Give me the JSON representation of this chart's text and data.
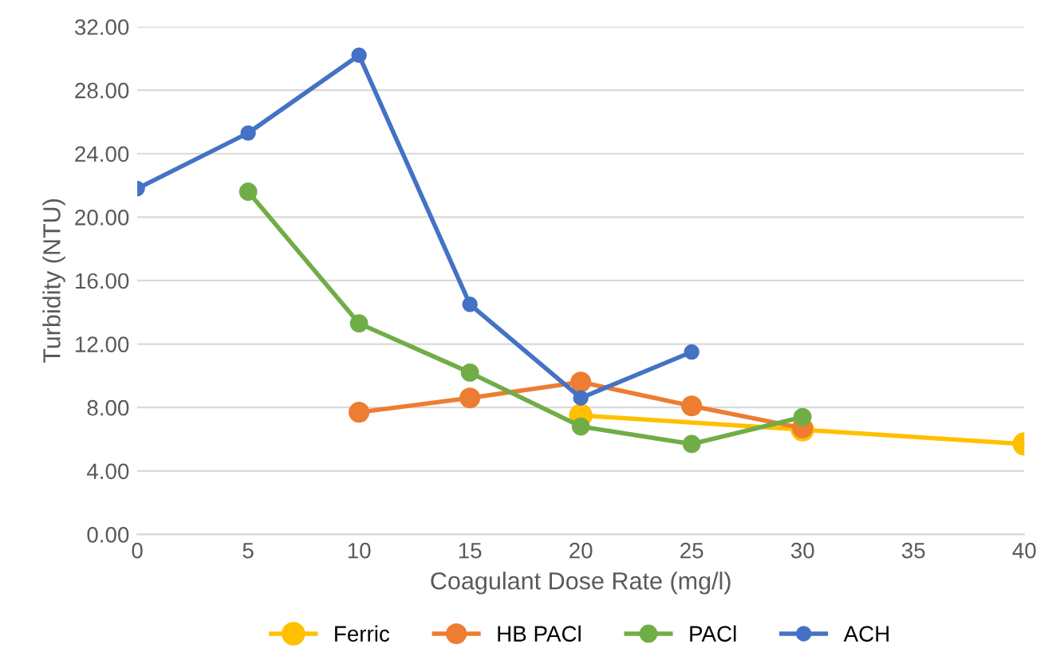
{
  "chart_data": {
    "type": "line",
    "xlabel": "Coagulant Dose Rate (mg/l)",
    "ylabel": "Turbidity (NTU)",
    "xlim": [
      0,
      40
    ],
    "xticks": [
      0,
      5,
      10,
      15,
      20,
      25,
      30,
      35,
      40
    ],
    "ylim": [
      0,
      32
    ],
    "yticks": [
      {
        "value": 0,
        "label": "0.00"
      },
      {
        "value": 4,
        "label": "4.00"
      },
      {
        "value": 8,
        "label": "8.00"
      },
      {
        "value": 12,
        "label": "12.00"
      },
      {
        "value": 16,
        "label": "16.00"
      },
      {
        "value": 20,
        "label": "20.00"
      },
      {
        "value": 24,
        "label": "24.00"
      },
      {
        "value": 28,
        "label": "28.00"
      },
      {
        "value": 32,
        "label": "32.00"
      }
    ],
    "grid": "y",
    "legend": "bottom",
    "marker": "circle",
    "line_style": "solid",
    "series": [
      {
        "name": "Ferric",
        "color": "#ffc000",
        "x": [
          20,
          30,
          40
        ],
        "values": [
          7.5,
          6.6,
          5.7
        ]
      },
      {
        "name": "HB PACl",
        "color": "#ed7d31",
        "x": [
          10,
          15,
          20,
          25,
          30
        ],
        "values": [
          7.7,
          8.6,
          9.6,
          8.1,
          6.7
        ]
      },
      {
        "name": "PACl",
        "color": "#70ad47",
        "x": [
          5,
          10,
          15,
          20,
          25,
          30
        ],
        "values": [
          21.6,
          13.3,
          10.2,
          6.8,
          5.7,
          7.4
        ]
      },
      {
        "name": "ACH",
        "color": "#4472c4",
        "x": [
          0,
          5,
          10,
          15,
          20,
          25
        ],
        "values": [
          21.8,
          25.3,
          30.2,
          14.5,
          8.6,
          11.5
        ]
      }
    ]
  }
}
